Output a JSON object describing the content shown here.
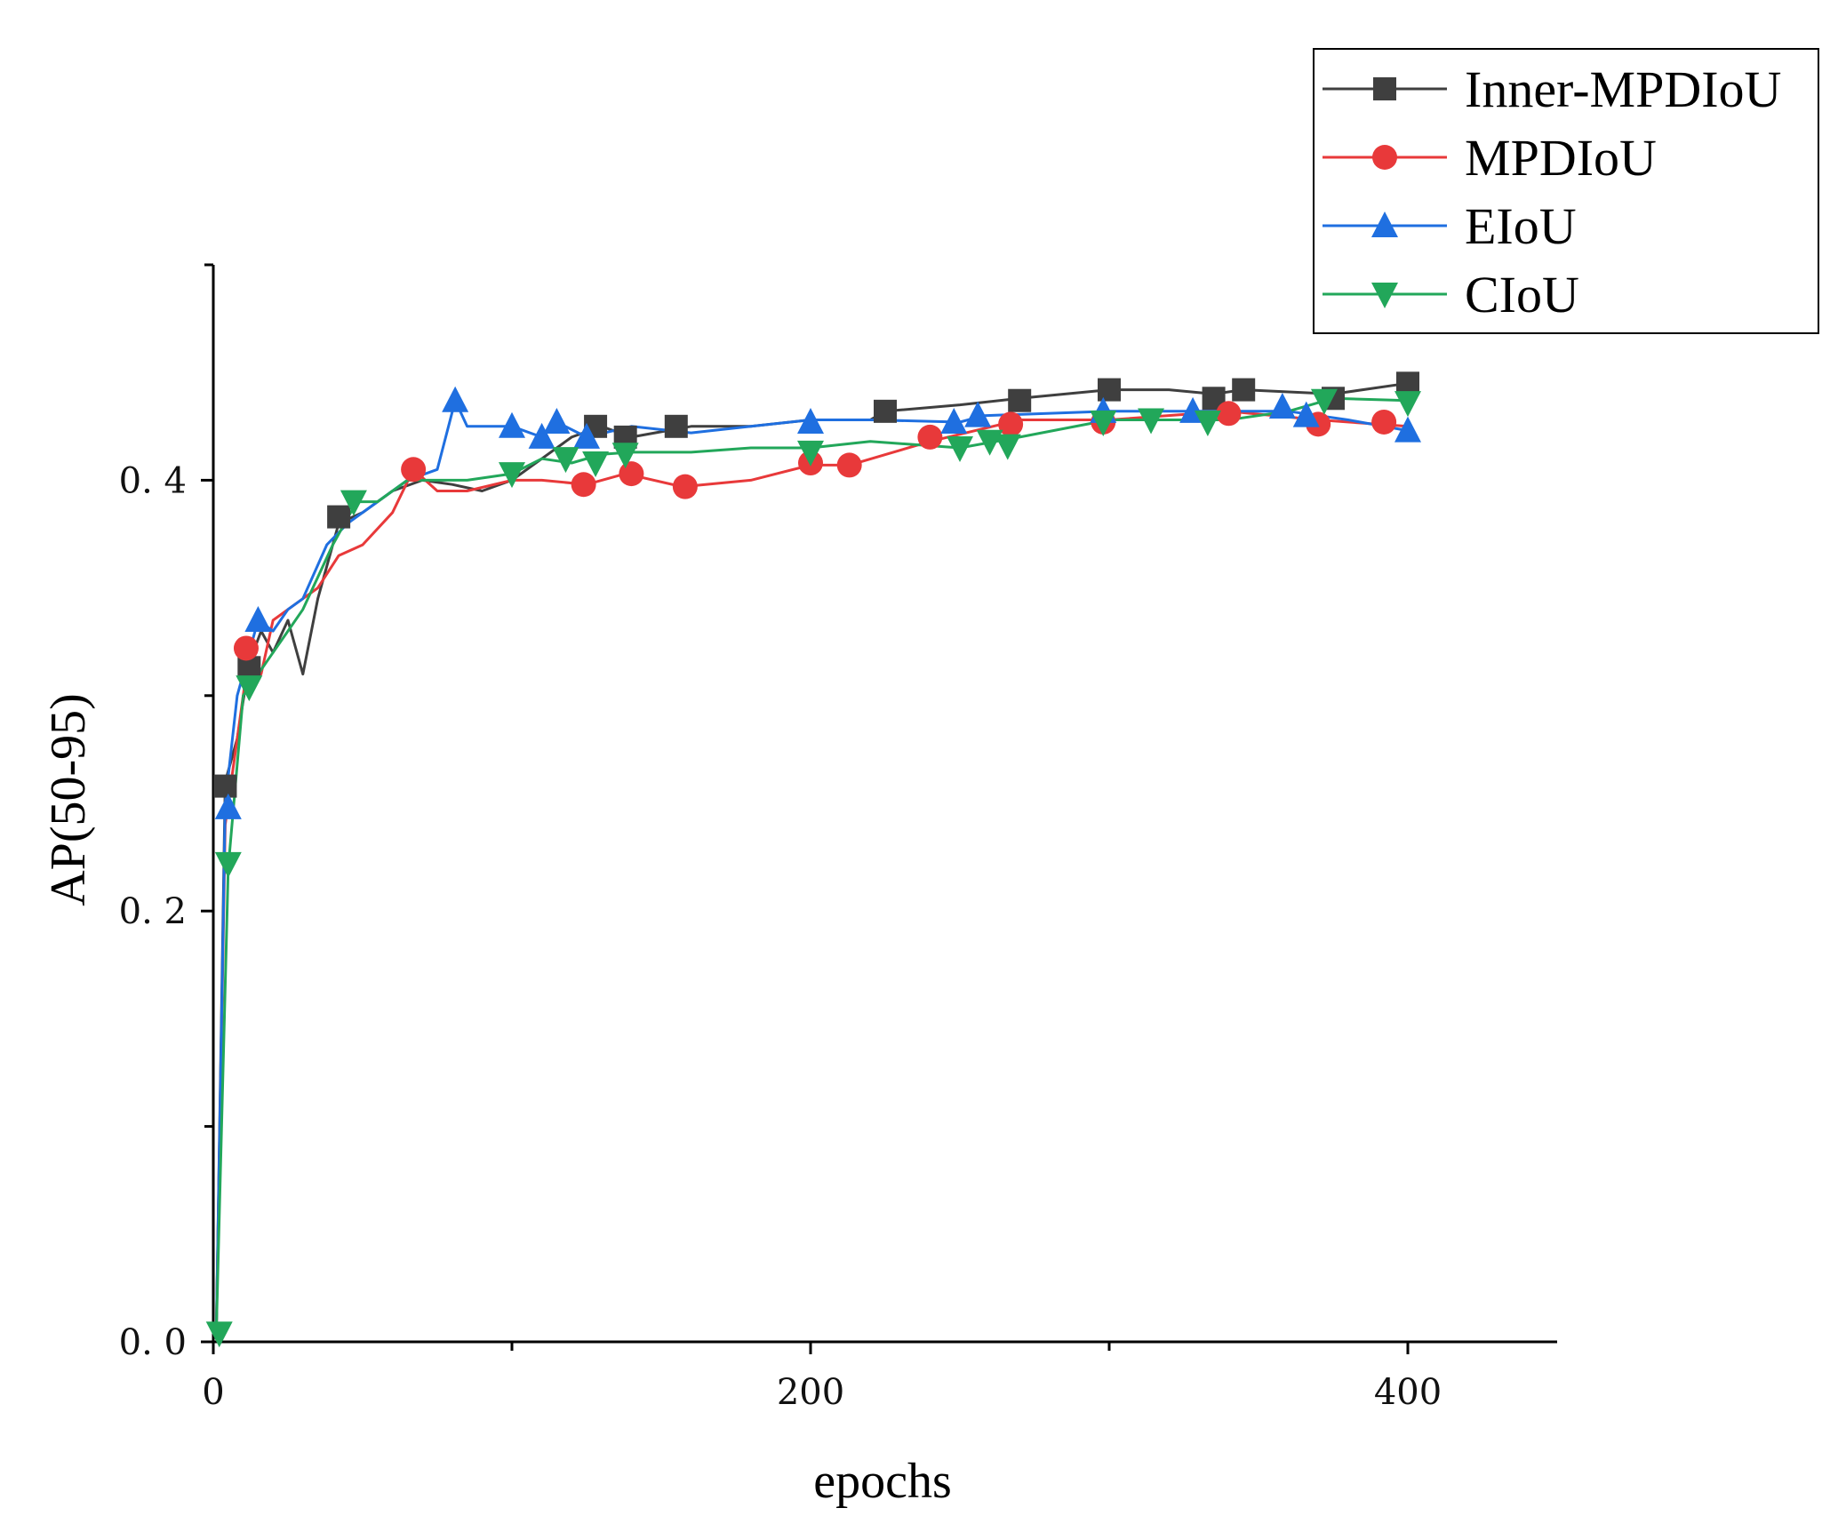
{
  "chart_data": {
    "type": "line",
    "title": "",
    "xlabel": "epochs",
    "ylabel": "AP(50-95)",
    "xlim": [
      0,
      450
    ],
    "ylim": [
      0,
      0.5
    ],
    "xticks": [
      0,
      200,
      400
    ],
    "xtick_labels": [
      "0",
      "200",
      "400"
    ],
    "yticks": [
      0.0,
      0.2,
      0.4
    ],
    "ytick_labels": [
      "0. 0",
      "0. 2",
      "0. 4"
    ],
    "grid": false,
    "legend_position": "top-right",
    "series": [
      {
        "name": "Inner-MPDIoU",
        "color": "#3f3f3f",
        "marker": "square",
        "x": [
          1,
          4,
          8,
          12,
          16,
          20,
          25,
          30,
          35,
          42,
          50,
          60,
          70,
          80,
          90,
          100,
          110,
          120,
          130,
          140,
          160,
          180,
          200,
          220,
          225,
          250,
          270,
          300,
          320,
          335,
          345,
          375,
          400
        ],
        "y": [
          0.005,
          0.26,
          0.28,
          0.315,
          0.33,
          0.32,
          0.335,
          0.31,
          0.345,
          0.38,
          0.385,
          0.395,
          0.4,
          0.398,
          0.395,
          0.4,
          0.41,
          0.42,
          0.425,
          0.42,
          0.425,
          0.425,
          0.428,
          0.428,
          0.432,
          0.435,
          0.438,
          0.442,
          0.442,
          0.44,
          0.442,
          0.44,
          0.445
        ],
        "marker_x": [
          4,
          12,
          42,
          128,
          138,
          155,
          225,
          270,
          300,
          335,
          345,
          375,
          400
        ],
        "marker_y": [
          0.258,
          0.313,
          0.383,
          0.425,
          0.42,
          0.425,
          0.432,
          0.437,
          0.442,
          0.438,
          0.442,
          0.438,
          0.445
        ]
      },
      {
        "name": "MPDIoU",
        "color": "#e8393a",
        "marker": "circle",
        "x": [
          1,
          4,
          8,
          12,
          16,
          20,
          25,
          30,
          35,
          42,
          50,
          60,
          67,
          75,
          85,
          100,
          110,
          125,
          138,
          157,
          180,
          200,
          213,
          240,
          270,
          300,
          340,
          370,
          400
        ],
        "y": [
          0.005,
          0.24,
          0.28,
          0.32,
          0.31,
          0.335,
          0.34,
          0.345,
          0.35,
          0.365,
          0.37,
          0.385,
          0.405,
          0.395,
          0.395,
          0.4,
          0.4,
          0.398,
          0.403,
          0.397,
          0.4,
          0.407,
          0.407,
          0.418,
          0.428,
          0.428,
          0.432,
          0.428,
          0.425
        ],
        "marker_x": [
          11,
          67,
          124,
          140,
          158,
          200,
          213,
          240,
          267,
          298,
          340,
          370,
          392
        ],
        "marker_y": [
          0.322,
          0.405,
          0.398,
          0.403,
          0.397,
          0.408,
          0.407,
          0.42,
          0.426,
          0.427,
          0.431,
          0.426,
          0.427
        ]
      },
      {
        "name": "EIoU",
        "color": "#1f6fe0",
        "marker": "triangle-up",
        "x": [
          1,
          4,
          8,
          15,
          20,
          25,
          30,
          38,
          45,
          55,
          65,
          75,
          81,
          85,
          100,
          110,
          115,
          125,
          140,
          160,
          180,
          200,
          220,
          250,
          258,
          300,
          330,
          360,
          380,
          400
        ],
        "y": [
          0.005,
          0.25,
          0.3,
          0.335,
          0.33,
          0.34,
          0.345,
          0.37,
          0.38,
          0.39,
          0.4,
          0.405,
          0.437,
          0.425,
          0.425,
          0.42,
          0.427,
          0.42,
          0.425,
          0.422,
          0.425,
          0.428,
          0.428,
          0.427,
          0.43,
          0.432,
          0.432,
          0.432,
          0.428,
          0.423
        ],
        "marker_x": [
          5,
          15,
          81,
          100,
          110,
          115,
          125,
          200,
          248,
          256,
          298,
          328,
          358,
          366,
          400
        ],
        "marker_y": [
          0.248,
          0.335,
          0.437,
          0.425,
          0.42,
          0.427,
          0.42,
          0.427,
          0.427,
          0.43,
          0.432,
          0.432,
          0.434,
          0.43,
          0.423
        ]
      },
      {
        "name": "CIoU",
        "color": "#22a75a",
        "marker": "triangle-down",
        "x": [
          1,
          5,
          10,
          15,
          20,
          25,
          30,
          35,
          40,
          48,
          55,
          65,
          75,
          85,
          100,
          110,
          120,
          130,
          140,
          160,
          180,
          200,
          220,
          250,
          270,
          300,
          320,
          340,
          360,
          375,
          400
        ],
        "y": [
          0.005,
          0.22,
          0.3,
          0.31,
          0.32,
          0.33,
          0.34,
          0.355,
          0.37,
          0.39,
          0.39,
          0.4,
          0.4,
          0.4,
          0.403,
          0.41,
          0.408,
          0.412,
          0.413,
          0.413,
          0.415,
          0.415,
          0.418,
          0.415,
          0.42,
          0.428,
          0.428,
          0.428,
          0.432,
          0.438,
          0.437
        ],
        "marker_x": [
          2,
          5,
          12,
          47,
          100,
          118,
          128,
          138,
          200,
          250,
          260,
          266,
          298,
          314,
          333,
          372,
          400
        ],
        "marker_y": [
          0.004,
          0.222,
          0.304,
          0.39,
          0.403,
          0.41,
          0.408,
          0.412,
          0.413,
          0.415,
          0.418,
          0.416,
          0.427,
          0.428,
          0.427,
          0.437,
          0.436
        ]
      }
    ]
  }
}
